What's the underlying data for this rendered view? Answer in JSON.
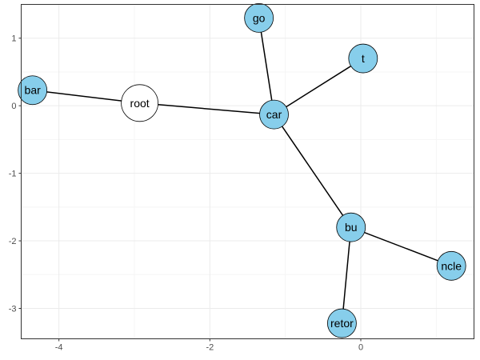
{
  "chart_data": {
    "type": "network",
    "xlim": [
      -4.5,
      1.5
    ],
    "ylim": [
      -3.45,
      1.5
    ],
    "x_ticks": [
      {
        "value": -4,
        "label": "-4"
      },
      {
        "value": -2,
        "label": "-2"
      },
      {
        "value": 0,
        "label": "0"
      }
    ],
    "y_ticks": [
      {
        "value": 1,
        "label": "1"
      },
      {
        "value": 0,
        "label": "0"
      },
      {
        "value": -1,
        "label": "-1"
      },
      {
        "value": -2,
        "label": "-2"
      },
      {
        "value": -3,
        "label": "-3"
      }
    ],
    "grid": true,
    "nodes": [
      {
        "id": "root",
        "label": "root",
        "x": -2.93,
        "y": 0.04,
        "color": "#ffffff"
      },
      {
        "id": "bar",
        "label": "bar",
        "x": -4.35,
        "y": 0.23,
        "color": "#87ceeb"
      },
      {
        "id": "car",
        "label": "car",
        "x": -1.15,
        "y": -0.13,
        "color": "#87ceeb"
      },
      {
        "id": "go",
        "label": "go",
        "x": -1.35,
        "y": 1.3,
        "color": "#87ceeb"
      },
      {
        "id": "t",
        "label": "t",
        "x": 0.03,
        "y": 0.7,
        "color": "#87ceeb"
      },
      {
        "id": "bu",
        "label": "bu",
        "x": -0.13,
        "y": -1.8,
        "color": "#87ceeb"
      },
      {
        "id": "ncle",
        "label": "ncle",
        "x": 1.2,
        "y": -2.37,
        "color": "#87ceeb"
      },
      {
        "id": "retor",
        "label": "retor",
        "x": -0.25,
        "y": -3.22,
        "color": "#87ceeb"
      }
    ],
    "edges": [
      [
        "root",
        "bar"
      ],
      [
        "root",
        "car"
      ],
      [
        "car",
        "go"
      ],
      [
        "car",
        "t"
      ],
      [
        "car",
        "bu"
      ],
      [
        "bu",
        "ncle"
      ],
      [
        "bu",
        "retor"
      ]
    ]
  }
}
